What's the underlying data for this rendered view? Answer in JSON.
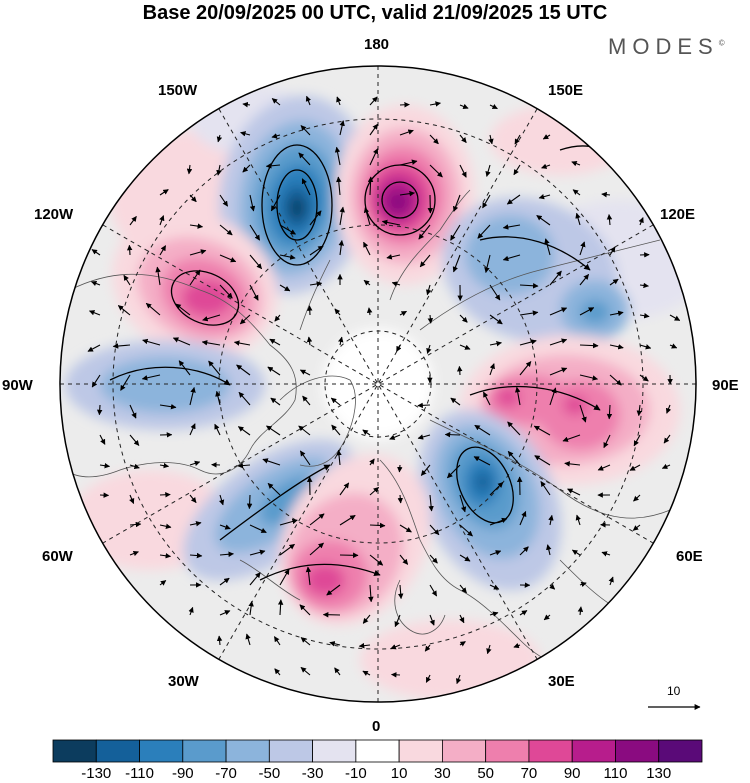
{
  "title": "Base 20/09/2025 00 UTC, valid 21/09/2025 15 UTC",
  "brand": "MODES",
  "brand_mark": "©",
  "longitude_labels": {
    "lon_180": "180",
    "lon_150E": "150E",
    "lon_120E": "120E",
    "lon_90E": "90E",
    "lon_60E": "60E",
    "lon_30E": "30E",
    "lon_0": "0",
    "lon_30W": "30W",
    "lon_60W": "60W",
    "lon_90W": "90W",
    "lon_120W": "120W",
    "lon_150W": "150W"
  },
  "reference_vector_label": "10",
  "colorbar": {
    "labels": [
      "-130",
      "-110",
      "-90",
      "-70",
      "-50",
      "-30",
      "-10",
      "10",
      "30",
      "50",
      "70",
      "90",
      "110",
      "130"
    ],
    "colors": [
      "#0c3c5e",
      "#14609a",
      "#2b7fbb",
      "#5a9bcc",
      "#8cb4dc",
      "#bdc8e6",
      "#e4e3f0",
      "#ffffff",
      "#f9d9df",
      "#f4aec6",
      "#ee7fad",
      "#df4897",
      "#b71d8c",
      "#8a0b80",
      "#5a0a78"
    ]
  },
  "anomaly_centers": [
    {
      "name": "neg-150W",
      "sign": "negative",
      "peak": -120
    },
    {
      "name": "pos-170E",
      "sign": "positive",
      "peak": 120
    },
    {
      "name": "pos-120W",
      "sign": "positive",
      "peak": 80
    },
    {
      "name": "neg-120E",
      "sign": "negative",
      "peak": -70
    },
    {
      "name": "neg-90W",
      "sign": "negative",
      "peak": -60
    },
    {
      "name": "pos-90E",
      "sign": "positive",
      "peak": 80
    },
    {
      "name": "neg-45E",
      "sign": "negative",
      "peak": -100
    },
    {
      "name": "neg-45W",
      "sign": "negative",
      "peak": -70
    },
    {
      "name": "pos-10W",
      "sign": "positive",
      "peak": 90
    }
  ]
}
